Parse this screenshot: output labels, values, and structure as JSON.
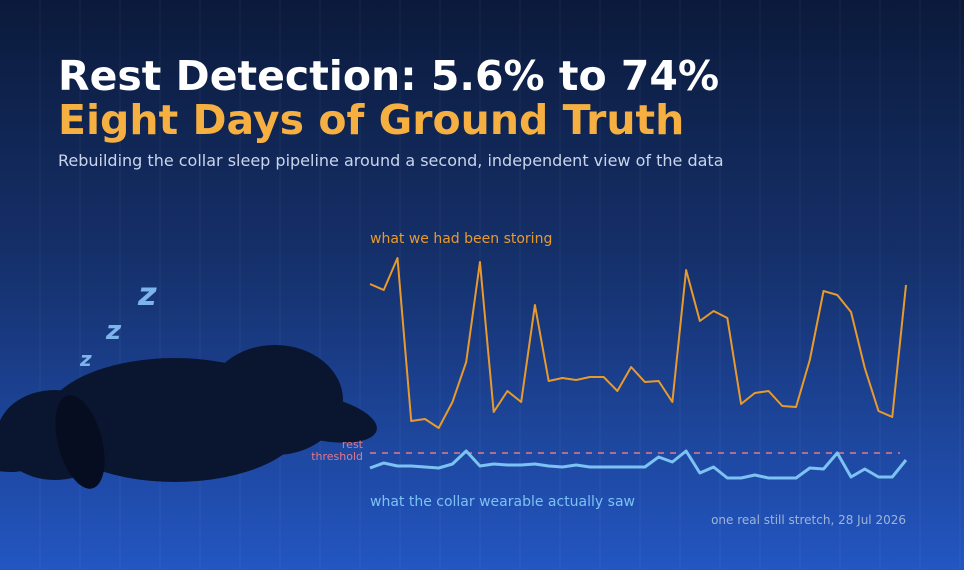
{
  "header": {
    "title": "Rest Detection: 5.6% to 74%",
    "subtitle": "Eight Days of Ground Truth",
    "description": "Rebuilding the collar sleep pipeline around a second, independent view of the data",
    "sleep_marks": [
      "z",
      "z",
      "z"
    ]
  },
  "chart_data": {
    "type": "line",
    "series": [
      {
        "name": "what we had been storing",
        "color": "#e89a2c",
        "values": [
          196,
          190,
          222,
          59,
          61,
          52,
          78,
          118,
          218,
          68,
          89,
          78,
          175,
          99,
          102,
          100,
          103,
          103,
          89,
          113,
          98,
          99,
          78,
          210,
          159,
          169,
          162,
          76,
          87,
          89,
          74,
          73,
          120,
          189,
          185,
          168,
          112,
          69,
          63,
          195
        ]
      },
      {
        "name": "what the collar wearable actually saw",
        "color": "#7cc2f2",
        "values": [
          12,
          17,
          14,
          14,
          13,
          12,
          16,
          29,
          14,
          16,
          15,
          15,
          16,
          14,
          13,
          15,
          13,
          13,
          13,
          13,
          13,
          23,
          18,
          29,
          7,
          13,
          2,
          2,
          5,
          2,
          2,
          2,
          12,
          11,
          27,
          3,
          11,
          3,
          3,
          20
        ]
      }
    ],
    "threshold": 27,
    "threshold_label": [
      "rest",
      "threshold"
    ],
    "threshold_color": "#e07a8a",
    "ylim": [
      0,
      240
    ],
    "annotation": "one real still stretch, 28 Jul 2026"
  }
}
